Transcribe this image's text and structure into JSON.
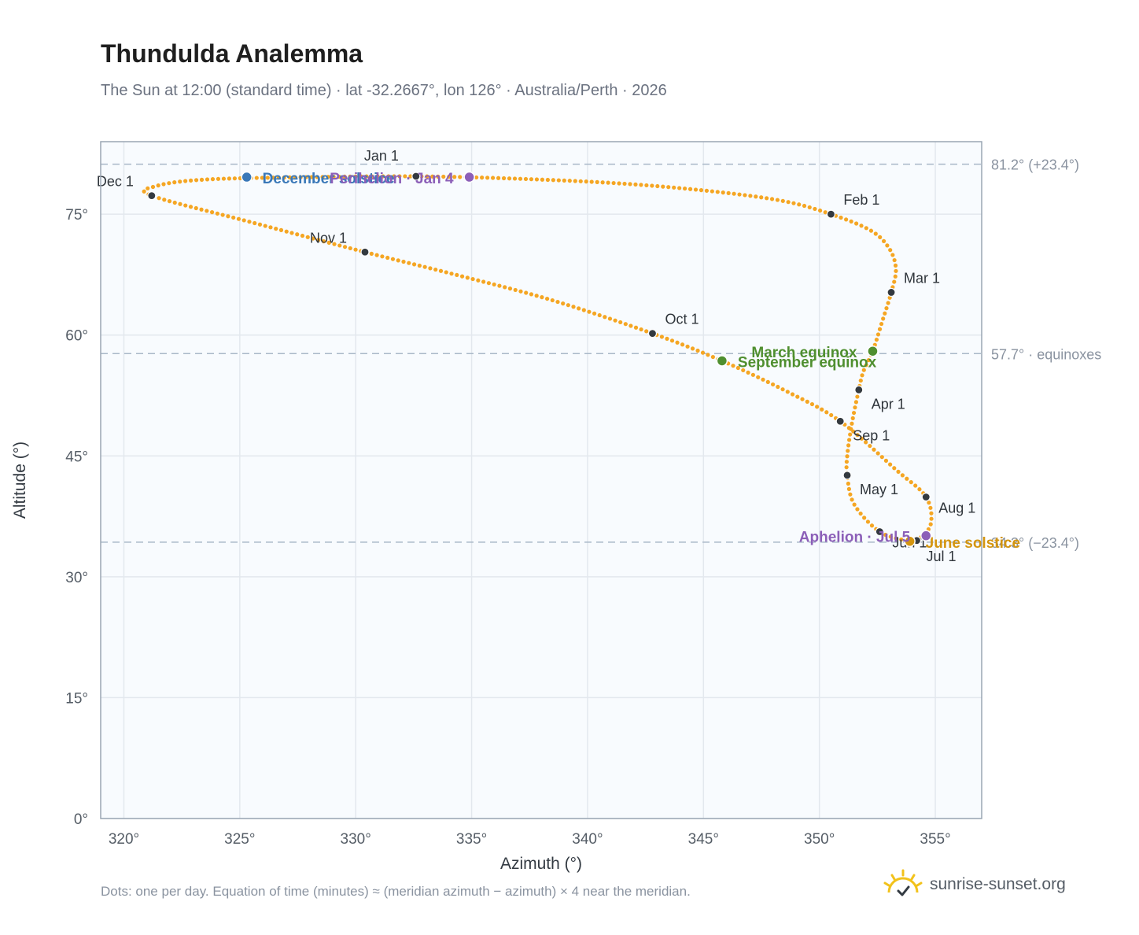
{
  "title": "Thundulda Analemma",
  "subtitle": "The Sun at 12:00 (standard time) · lat -32.2667°, lon 126° · Australia/Perth · 2026",
  "footnote": "Dots: one per day. Equation of time (minutes) ≈ (meridian azimuth − azimuth) × 4 near the meridian.",
  "brand": "sunrise-sunset.org",
  "colors": {
    "path": "#f5a623",
    "month_dot": "#343a40",
    "winter_solstice": "#3a78b8",
    "summer_solstice": "#d4950f",
    "equinox": "#4f8f2f",
    "apsis": "#8c5fb8",
    "ref_line": "#a9b8c8",
    "plot_bg": "#f8fbfe"
  },
  "chart_data": {
    "type": "scatter",
    "xlabel": "Azimuth (°)",
    "ylabel": "Altitude (°)",
    "xlim": [
      319,
      357
    ],
    "ylim": [
      0,
      84
    ],
    "xticks": [
      320,
      325,
      330,
      335,
      340,
      345,
      350,
      355
    ],
    "yticks": [
      0,
      15,
      30,
      45,
      60,
      75
    ],
    "xtick_labels": [
      "320°",
      "325°",
      "330°",
      "335°",
      "340°",
      "345°",
      "350°",
      "355°"
    ],
    "ytick_labels": [
      "0°",
      "15°",
      "30°",
      "45°",
      "60°",
      "75°"
    ],
    "grid": true,
    "reference_lines": [
      {
        "y": 81.2,
        "label": "81.2° (+23.4°)"
      },
      {
        "y": 57.7,
        "label": "57.7° · equinoxes"
      },
      {
        "y": 34.3,
        "label": "34.3° (−23.4°)"
      }
    ],
    "month_points": [
      {
        "label": "Jan 1",
        "x": 332.6,
        "y": 79.7
      },
      {
        "label": "Feb 1",
        "x": 350.5,
        "y": 75.0
      },
      {
        "label": "Mar 1",
        "x": 353.1,
        "y": 65.3
      },
      {
        "label": "Apr 1",
        "x": 351.7,
        "y": 53.2
      },
      {
        "label": "May 1",
        "x": 351.2,
        "y": 42.6
      },
      {
        "label": "Jun 1",
        "x": 352.6,
        "y": 35.6
      },
      {
        "label": "Jul 1",
        "x": 354.2,
        "y": 34.5
      },
      {
        "label": "Aug 1",
        "x": 354.6,
        "y": 39.9
      },
      {
        "label": "Sep 1",
        "x": 350.9,
        "y": 49.3
      },
      {
        "label": "Oct 1",
        "x": 342.8,
        "y": 60.2
      },
      {
        "label": "Nov 1",
        "x": 330.4,
        "y": 70.3
      },
      {
        "label": "Dec 1",
        "x": 321.2,
        "y": 77.3
      }
    ],
    "events": [
      {
        "label": "December solstice",
        "x": 325.3,
        "y": 79.6,
        "kind": "winter_solstice"
      },
      {
        "label": "Perihelion · Jan 4",
        "x": 334.9,
        "y": 79.6,
        "kind": "apsis"
      },
      {
        "label": "March equinox",
        "x": 352.3,
        "y": 58.0,
        "kind": "equinox"
      },
      {
        "label": "September equinox",
        "x": 345.8,
        "y": 56.8,
        "kind": "equinox"
      },
      {
        "label": "June solstice",
        "x": 353.9,
        "y": 34.4,
        "kind": "summer_solstice"
      },
      {
        "label": "Aphelion · Jul 5",
        "x": 354.6,
        "y": 35.1,
        "kind": "apsis"
      }
    ],
    "path_anchors": [
      {
        "x": 332.6,
        "y": 79.7
      },
      {
        "x": 337.0,
        "y": 79.4
      },
      {
        "x": 341.5,
        "y": 78.8
      },
      {
        "x": 345.5,
        "y": 77.8
      },
      {
        "x": 348.5,
        "y": 76.6
      },
      {
        "x": 350.5,
        "y": 75.0
      },
      {
        "x": 352.2,
        "y": 73.0
      },
      {
        "x": 353.0,
        "y": 70.8
      },
      {
        "x": 353.3,
        "y": 68.2
      },
      {
        "x": 353.1,
        "y": 65.3
      },
      {
        "x": 352.7,
        "y": 61.6
      },
      {
        "x": 352.3,
        "y": 58.0
      },
      {
        "x": 351.9,
        "y": 55.5
      },
      {
        "x": 351.7,
        "y": 53.2
      },
      {
        "x": 351.4,
        "y": 49.0
      },
      {
        "x": 351.2,
        "y": 45.0
      },
      {
        "x": 351.2,
        "y": 42.6
      },
      {
        "x": 351.5,
        "y": 39.0
      },
      {
        "x": 352.6,
        "y": 35.6
      },
      {
        "x": 353.9,
        "y": 34.4
      },
      {
        "x": 354.2,
        "y": 34.5
      },
      {
        "x": 354.8,
        "y": 36.5
      },
      {
        "x": 354.6,
        "y": 39.9
      },
      {
        "x": 353.3,
        "y": 43.3
      },
      {
        "x": 350.9,
        "y": 49.3
      },
      {
        "x": 348.6,
        "y": 53.0
      },
      {
        "x": 345.8,
        "y": 56.8
      },
      {
        "x": 342.8,
        "y": 60.2
      },
      {
        "x": 338.5,
        "y": 64.3
      },
      {
        "x": 334.3,
        "y": 67.5
      },
      {
        "x": 330.4,
        "y": 70.3
      },
      {
        "x": 325.5,
        "y": 74.0
      },
      {
        "x": 321.2,
        "y": 77.3
      },
      {
        "x": 321.4,
        "y": 78.5
      },
      {
        "x": 323.5,
        "y": 79.3
      },
      {
        "x": 328.0,
        "y": 79.6
      },
      {
        "x": 332.6,
        "y": 79.7
      }
    ]
  }
}
